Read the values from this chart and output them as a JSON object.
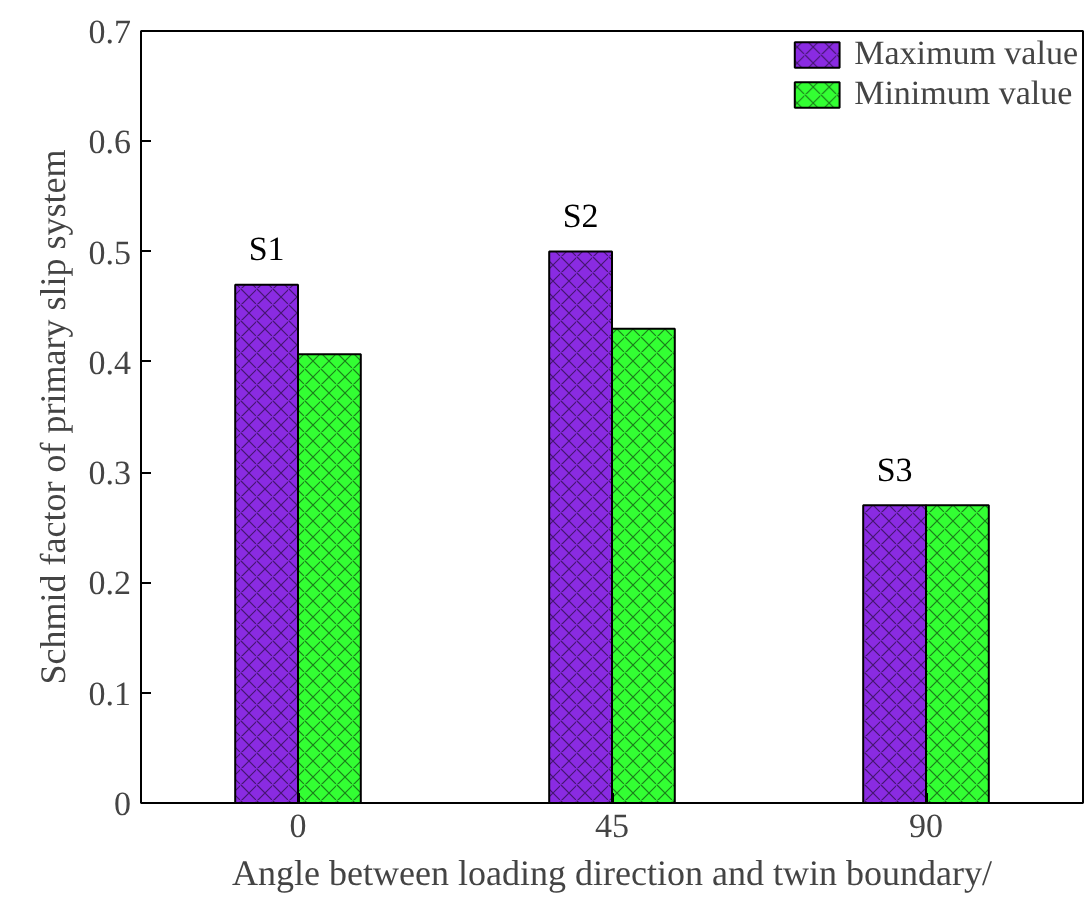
{
  "chart_data": {
    "type": "bar",
    "xlabel": "Angle between loading direction and twin boundary/",
    "ylabel": "Schmid factor of primary slip system",
    "categories": [
      "0",
      "45",
      "90"
    ],
    "series": [
      {
        "name": "Maximum value",
        "color": "#8a2be2",
        "values": [
          0.47,
          0.5,
          0.27
        ]
      },
      {
        "name": "Minimum value",
        "color": "#33ff33",
        "values": [
          0.407,
          0.43,
          0.27
        ]
      }
    ],
    "ylim": [
      0,
      0.7
    ],
    "yticks": [
      {
        "value": 0,
        "label": "0"
      },
      0.1,
      0.2,
      0.3,
      0.4,
      0.5,
      0.6,
      0.7
    ],
    "annotations": [
      {
        "text": "S1",
        "x": "0",
        "y": 0.47
      },
      {
        "text": "S2",
        "x": "45",
        "y": 0.5
      },
      {
        "text": "S3",
        "x": "90",
        "y": 0.27
      }
    ],
    "legend": "top right",
    "grid": false
  }
}
